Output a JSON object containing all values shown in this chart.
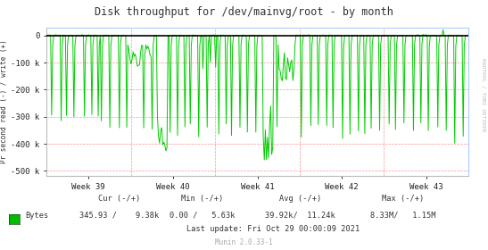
{
  "title": "Disk throughput for /dev/mainvg/root - by month",
  "ylabel": "Pr second read (-) / write (+)",
  "bg_color": "#FFFFFF",
  "plot_bg_color": "#FFFFFF",
  "border_color": "#BBBBBB",
  "line_color": "#00CC00",
  "zero_line_color": "#000000",
  "dashed_red": "#FF6666",
  "week_labels": [
    "Week 39",
    "Week 40",
    "Week 41",
    "Week 42",
    "Week 43"
  ],
  "ylim": [
    -520000,
    30000
  ],
  "yticks": [
    0,
    -100000,
    -200000,
    -300000,
    -400000,
    -500000
  ],
  "ytick_labels": [
    "0",
    "-100 k",
    "-200 k",
    "-300 k",
    "-400 k",
    "-500 k"
  ],
  "sidebar_text": "RRDTOOL / TOBI OETIKER",
  "footer_cur": "Cur (-/+)",
  "footer_min": "Min (-/+)",
  "footer_avg": "Avg (-/+)",
  "footer_max": "Max (-/+)",
  "footer_label": "Bytes",
  "footer_cur_val": "345.93 /    9.38k",
  "footer_min_val": "0.00 /   5.63k",
  "footer_avg_val": "39.92k/  11.24k",
  "footer_max_val": "8.33M/   1.15M",
  "footer_lastupdate": "Last update: Fri Oct 29 00:00:09 2021",
  "munin_version": "Munin 2.0.33-1",
  "num_points": 400
}
